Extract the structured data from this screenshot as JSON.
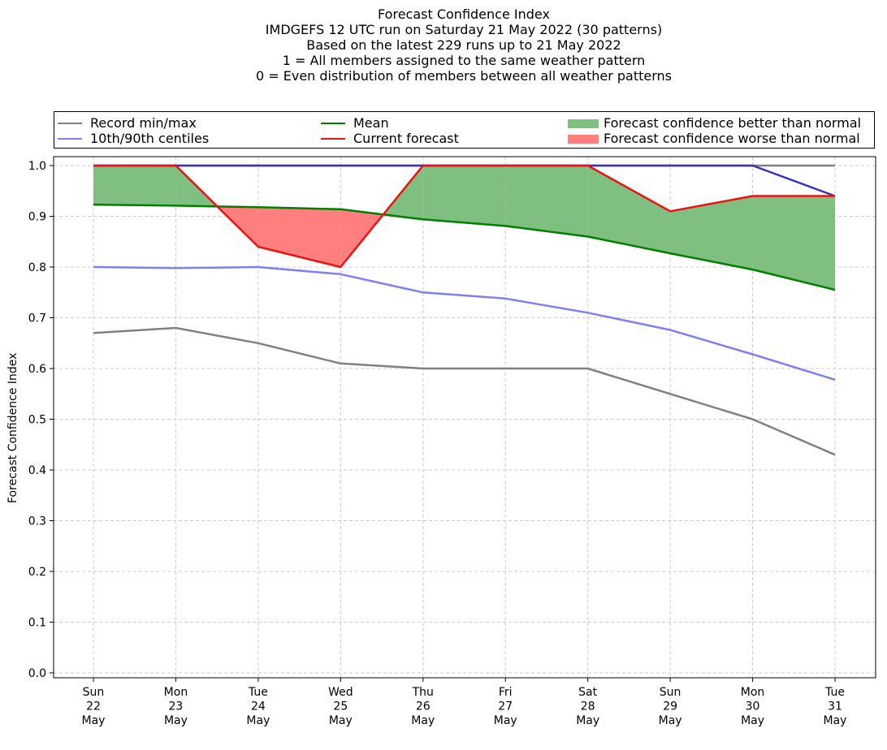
{
  "title_lines": [
    "Forecast Confidence Index",
    "IMDGEFS 12 UTC run on Saturday 21 May 2022 (30 patterns)",
    "Based on the latest 229 runs up to 21 May 2022",
    "1 = All members assigned to the same weather pattern",
    "0 = Even distribution of members between all weather patterns"
  ],
  "legend": {
    "record": "Record min/max",
    "centiles": "10th/90th centiles",
    "mean": "Mean",
    "current": "Current forecast",
    "better": "Forecast confidence better than normal",
    "worse": "Forecast confidence worse than normal"
  },
  "colors": {
    "record": "#808080",
    "centiles": "#8080f0",
    "centiles_upper": "#3333bb",
    "mean": "#008000",
    "current": "#ee1111",
    "better": "#7fbf7f",
    "worse": "#ff7f7f",
    "grid": "#cccccc"
  },
  "chart_data": {
    "type": "line",
    "title": "Forecast Confidence Index",
    "ylabel": "Forecast Confidence Index",
    "xlabel": "",
    "ylim": [
      0,
      1.0
    ],
    "yticks": [
      0.0,
      0.1,
      0.2,
      0.3,
      0.4,
      0.5,
      0.6,
      0.7,
      0.8,
      0.9,
      1.0
    ],
    "grid": true,
    "legend_position": "top",
    "categories": [
      [
        "Sun",
        "22",
        "May"
      ],
      [
        "Mon",
        "23",
        "May"
      ],
      [
        "Tue",
        "24",
        "May"
      ],
      [
        "Wed",
        "25",
        "May"
      ],
      [
        "Thu",
        "26",
        "May"
      ],
      [
        "Fri",
        "27",
        "May"
      ],
      [
        "Sat",
        "28",
        "May"
      ],
      [
        "Sun",
        "29",
        "May"
      ],
      [
        "Mon",
        "30",
        "May"
      ],
      [
        "Tue",
        "31",
        "May"
      ]
    ],
    "series": [
      {
        "name": "Record min/max",
        "role": "record_max",
        "values": [
          1.0,
          1.0,
          1.0,
          1.0,
          1.0,
          1.0,
          1.0,
          1.0,
          1.0,
          1.0
        ]
      },
      {
        "name": "Record min/max",
        "role": "record_min",
        "values": [
          0.67,
          0.68,
          0.65,
          0.61,
          0.6,
          0.6,
          0.6,
          0.55,
          0.5,
          0.43
        ]
      },
      {
        "name": "10th/90th centiles",
        "role": "p90",
        "values": [
          1.0,
          1.0,
          1.0,
          1.0,
          1.0,
          1.0,
          1.0,
          1.0,
          1.0,
          0.94
        ]
      },
      {
        "name": "10th/90th centiles",
        "role": "p10",
        "values": [
          0.8,
          0.798,
          0.8,
          0.786,
          0.75,
          0.738,
          0.71,
          0.676,
          0.628,
          0.578
        ]
      },
      {
        "name": "Mean",
        "role": "mean",
        "values": [
          0.923,
          0.921,
          0.918,
          0.914,
          0.894,
          0.881,
          0.86,
          0.827,
          0.795,
          0.755
        ]
      },
      {
        "name": "Current forecast",
        "role": "current",
        "values": [
          1.0,
          1.0,
          0.84,
          0.8,
          1.0,
          1.0,
          1.0,
          0.91,
          0.94,
          0.94
        ]
      }
    ]
  }
}
